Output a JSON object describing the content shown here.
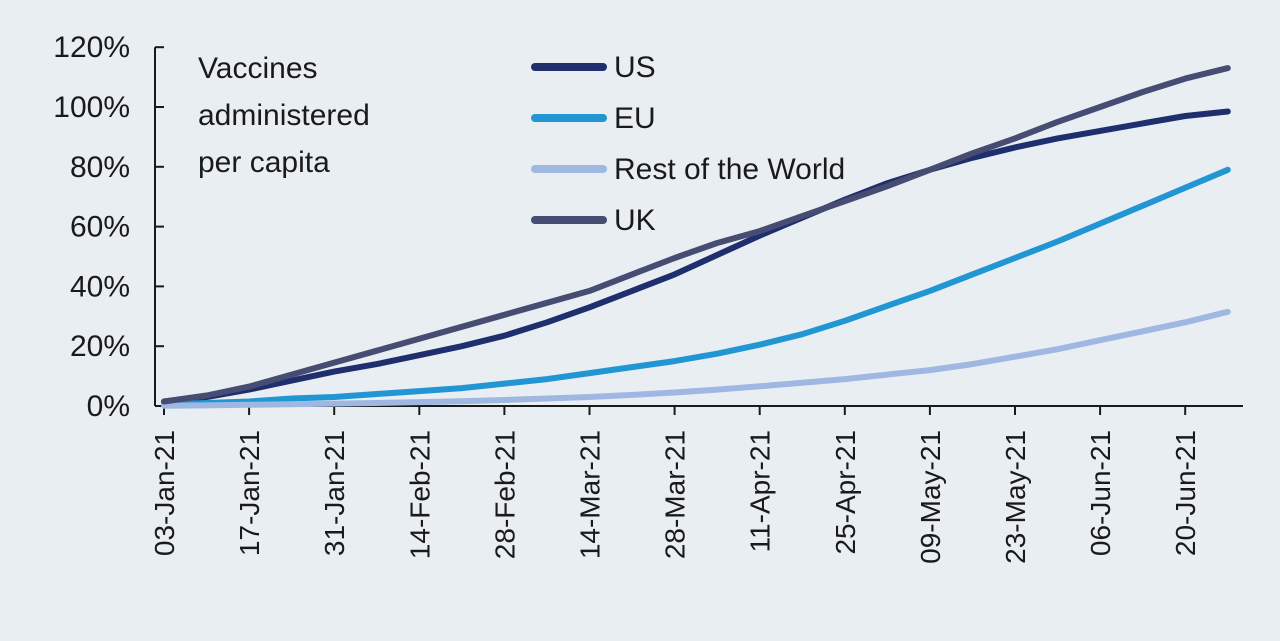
{
  "chart_data": {
    "type": "line",
    "title": "Vaccines administered per capita",
    "title_lines": [
      "Vaccines",
      "administered",
      "per capita"
    ],
    "xlabel": "",
    "ylabel": "",
    "x_tick_labels": [
      "03-Jan-21",
      "17-Jan-21",
      "31-Jan-21",
      "14-Feb-21",
      "28-Feb-21",
      "14-Mar-21",
      "28-Mar-21",
      "11-Apr-21",
      "25-Apr-21",
      "09-May-21",
      "23-May-21",
      "06-Jun-21",
      "20-Jun-21"
    ],
    "y_tick_labels": [
      "0%",
      "20%",
      "40%",
      "60%",
      "80%",
      "100%",
      "120%"
    ],
    "ylim": [
      0,
      120
    ],
    "y_unit": "%",
    "grid": false,
    "legend_position": "top-center",
    "x": [
      "03-Jan-21",
      "10-Jan-21",
      "17-Jan-21",
      "24-Jan-21",
      "31-Jan-21",
      "07-Feb-21",
      "14-Feb-21",
      "21-Feb-21",
      "28-Feb-21",
      "07-Mar-21",
      "14-Mar-21",
      "21-Mar-21",
      "28-Mar-21",
      "04-Apr-21",
      "11-Apr-21",
      "18-Apr-21",
      "25-Apr-21",
      "02-May-21",
      "09-May-21",
      "16-May-21",
      "23-May-21",
      "30-May-21",
      "06-Jun-21",
      "13-Jun-21",
      "20-Jun-21",
      "27-Jun-21"
    ],
    "series": [
      {
        "name": "US",
        "color": "#1f2f6e",
        "values": [
          1.5,
          3,
          5.5,
          8.5,
          11.5,
          14,
          17,
          20,
          23.5,
          28,
          33,
          38.5,
          44,
          50.5,
          57,
          63,
          69,
          74.5,
          79,
          83,
          86.5,
          89.5,
          92,
          94.5,
          97,
          98.5
        ]
      },
      {
        "name": "EU",
        "color": "#2196d3",
        "values": [
          0.5,
          1,
          1.5,
          2.5,
          3,
          4,
          5,
          6,
          7.5,
          9,
          11,
          13,
          15,
          17.5,
          20.5,
          24,
          28.5,
          33.5,
          38.5,
          44,
          49.5,
          55,
          61,
          67,
          73,
          79
        ]
      },
      {
        "name": "Rest of the World",
        "color": "#9fb8e2",
        "values": [
          0.1,
          0.2,
          0.4,
          0.6,
          0.8,
          1,
          1.3,
          1.6,
          2,
          2.5,
          3,
          3.7,
          4.5,
          5.5,
          6.6,
          7.8,
          9,
          10.5,
          12,
          14,
          16.5,
          19,
          22,
          25,
          28,
          31.5
        ]
      },
      {
        "name": "UK",
        "color": "#464c72",
        "values": [
          1.5,
          3.5,
          6.5,
          10.5,
          14.5,
          18.5,
          22.5,
          26.5,
          30.5,
          34.5,
          38.5,
          44,
          49.5,
          54.5,
          58.5,
          63.5,
          68.5,
          73.5,
          79,
          84.5,
          89.5,
          95,
          100,
          105,
          109.5,
          113
        ]
      }
    ]
  }
}
